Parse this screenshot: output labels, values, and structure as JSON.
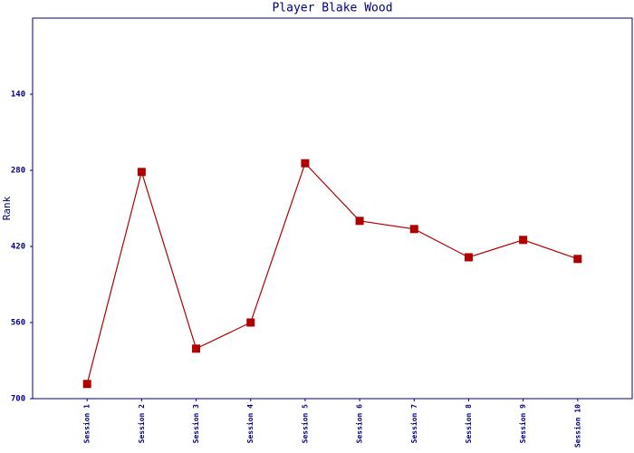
{
  "chart_data": {
    "type": "line",
    "title": "Player Blake Wood",
    "y_label": "Rank",
    "categories": [
      "Session 1",
      "Session 2",
      "Session 3",
      "Session 4",
      "Session 5",
      "Session 6",
      "Session 7",
      "Session 8",
      "Session 9",
      "Session 10"
    ],
    "series": [
      {
        "name": "Rank",
        "color": "#b00000",
        "values": [
          673,
          283,
          608,
          560,
          267,
          373,
          388,
          440,
          408,
          443
        ]
      }
    ],
    "ylim": [
      700,
      0
    ],
    "yticks": [
      140,
      280,
      420,
      560,
      700
    ],
    "axis_color": "#000080"
  }
}
